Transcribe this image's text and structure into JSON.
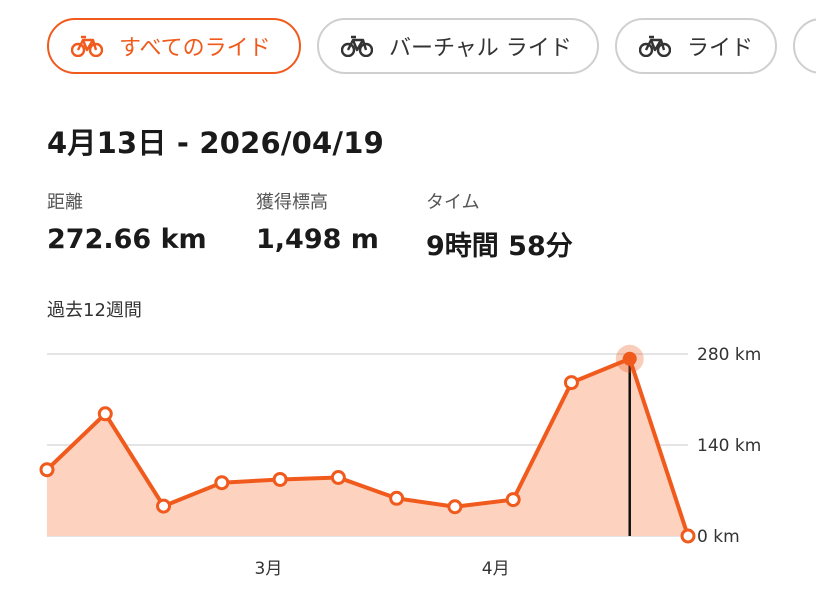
{
  "filters": [
    {
      "label": "すべてのライド",
      "icon": "bike-icon",
      "active": true
    },
    {
      "label": "バーチャル ライド",
      "icon": "bike-icon",
      "active": false
    },
    {
      "label": "ライド",
      "icon": "bike-icon",
      "active": false
    }
  ],
  "date_range": "4月13日 - 2026/04/19",
  "stats": {
    "distance": {
      "label": "距離",
      "value": "272.66 km"
    },
    "elevation": {
      "label": "獲得標高",
      "value": "1,498 m"
    },
    "time": {
      "label": "タイム",
      "value": "9時間 58分"
    }
  },
  "period_label": "過去12週間",
  "colors": {
    "accent": "#f05a1c",
    "fill": "#fdd2bf",
    "grid": "#dcdcdc"
  },
  "chart_data": {
    "type": "area",
    "title": "",
    "xlabel": "",
    "ylabel": "",
    "unit": "km",
    "ylim": [
      0,
      280
    ],
    "y_ticks": [
      {
        "value": 280,
        "label": "280 km"
      },
      {
        "value": 140,
        "label": "140 km"
      },
      {
        "value": 0,
        "label": "0 km"
      }
    ],
    "x_ticks": [
      {
        "index": 3.8,
        "label": "3月"
      },
      {
        "index": 7.7,
        "label": "4月"
      }
    ],
    "values": [
      102,
      188,
      46,
      82,
      87,
      90,
      58,
      45,
      56,
      236,
      272.66,
      0
    ],
    "selected_index": 10,
    "grid": true
  }
}
